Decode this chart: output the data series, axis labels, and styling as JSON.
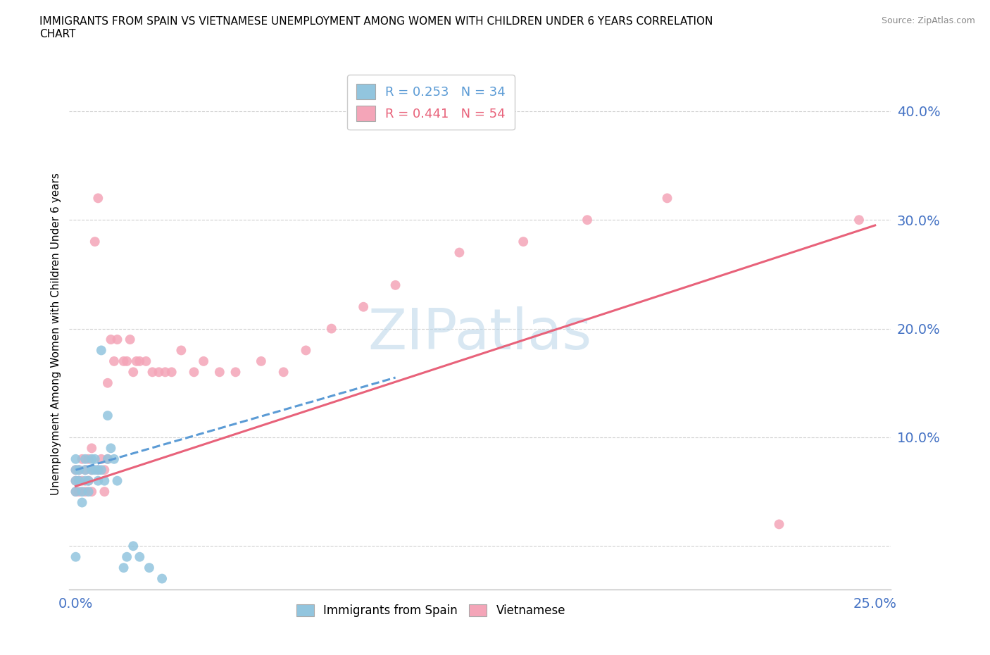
{
  "title": "IMMIGRANTS FROM SPAIN VS VIETNAMESE UNEMPLOYMENT AMONG WOMEN WITH CHILDREN UNDER 6 YEARS CORRELATION\nCHART",
  "source_text": "Source: ZipAtlas.com",
  "ylabel": "Unemployment Among Women with Children Under 6 years",
  "xlim": [
    -0.002,
    0.255
  ],
  "ylim": [
    -0.04,
    0.43
  ],
  "yticks": [
    0.0,
    0.1,
    0.2,
    0.3,
    0.4
  ],
  "xticks": [
    0.0,
    0.05,
    0.1,
    0.15,
    0.2,
    0.25
  ],
  "ytick_labels": [
    "",
    "10.0%",
    "20.0%",
    "30.0%",
    "40.0%"
  ],
  "legend_r1": "R = 0.253   N = 34",
  "legend_r2": "R = 0.441   N = 54",
  "color_spain": "#92c5de",
  "color_viet": "#f4a5b8",
  "color_spain_line": "#5b9bd5",
  "color_viet_line": "#e8627a",
  "watermark": "ZIPatlas",
  "spain_x": [
    0.0,
    0.0,
    0.0,
    0.0,
    0.0,
    0.001,
    0.001,
    0.002,
    0.002,
    0.003,
    0.003,
    0.003,
    0.004,
    0.004,
    0.005,
    0.005,
    0.006,
    0.006,
    0.007,
    0.007,
    0.008,
    0.008,
    0.009,
    0.01,
    0.01,
    0.011,
    0.012,
    0.013,
    0.015,
    0.016,
    0.018,
    0.02,
    0.023,
    0.027
  ],
  "spain_y": [
    0.05,
    0.06,
    0.07,
    0.08,
    -0.01,
    0.06,
    0.07,
    0.04,
    0.05,
    0.06,
    0.07,
    0.08,
    0.05,
    0.06,
    0.07,
    0.08,
    0.07,
    0.08,
    0.06,
    0.07,
    0.18,
    0.07,
    0.06,
    0.08,
    0.12,
    0.09,
    0.08,
    0.06,
    -0.02,
    -0.01,
    0.0,
    -0.01,
    -0.02,
    -0.03
  ],
  "viet_x": [
    0.0,
    0.0,
    0.0,
    0.001,
    0.001,
    0.001,
    0.002,
    0.002,
    0.003,
    0.003,
    0.004,
    0.004,
    0.005,
    0.005,
    0.005,
    0.006,
    0.007,
    0.007,
    0.008,
    0.009,
    0.009,
    0.01,
    0.01,
    0.011,
    0.012,
    0.013,
    0.015,
    0.016,
    0.017,
    0.018,
    0.019,
    0.02,
    0.022,
    0.024,
    0.026,
    0.028,
    0.03,
    0.033,
    0.037,
    0.04,
    0.045,
    0.05,
    0.058,
    0.065,
    0.072,
    0.08,
    0.09,
    0.1,
    0.12,
    0.14,
    0.16,
    0.185,
    0.22,
    0.245
  ],
  "viet_y": [
    0.05,
    0.06,
    0.07,
    0.05,
    0.06,
    0.07,
    0.06,
    0.08,
    0.05,
    0.07,
    0.06,
    0.08,
    0.05,
    0.07,
    0.09,
    0.28,
    0.07,
    0.32,
    0.08,
    0.05,
    0.07,
    0.08,
    0.15,
    0.19,
    0.17,
    0.19,
    0.17,
    0.17,
    0.19,
    0.16,
    0.17,
    0.17,
    0.17,
    0.16,
    0.16,
    0.16,
    0.16,
    0.18,
    0.16,
    0.17,
    0.16,
    0.16,
    0.17,
    0.16,
    0.18,
    0.2,
    0.22,
    0.24,
    0.27,
    0.28,
    0.3,
    0.32,
    0.02,
    0.3
  ],
  "trendline_spain_x0": 0.0,
  "trendline_spain_y0": 0.07,
  "trendline_spain_x1": 0.1,
  "trendline_spain_y1": 0.155,
  "trendline_viet_x0": 0.0,
  "trendline_viet_y0": 0.055,
  "trendline_viet_x1": 0.25,
  "trendline_viet_y1": 0.295
}
